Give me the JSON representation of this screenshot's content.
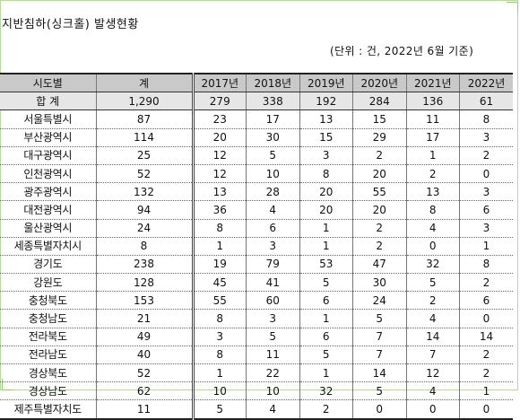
{
  "title": "지반침하(싱크홀) 발생현황",
  "unit_note": "(단위 : 건, 2022년 6월 기준)",
  "table": {
    "headers": [
      "시도별",
      "계",
      "2017년",
      "2018년",
      "2019년",
      "2020년",
      "2021년",
      "2022년"
    ],
    "total": {
      "label": "합 계",
      "values": [
        "1,290",
        "279",
        "338",
        "192",
        "284",
        "136",
        "61"
      ]
    },
    "rows": [
      {
        "region": "서울특별시",
        "values": [
          "87",
          "23",
          "17",
          "13",
          "15",
          "11",
          "8"
        ]
      },
      {
        "region": "부산광역시",
        "values": [
          "114",
          "20",
          "30",
          "15",
          "29",
          "17",
          "3"
        ]
      },
      {
        "region": "대구광역시",
        "values": [
          "25",
          "12",
          "5",
          "3",
          "2",
          "1",
          "2"
        ]
      },
      {
        "region": "인천광역시",
        "values": [
          "52",
          "12",
          "10",
          "8",
          "20",
          "2",
          "0"
        ]
      },
      {
        "region": "광주광역시",
        "values": [
          "132",
          "13",
          "28",
          "20",
          "55",
          "13",
          "3"
        ]
      },
      {
        "region": "대전광역시",
        "values": [
          "94",
          "36",
          "4",
          "20",
          "20",
          "8",
          "6"
        ]
      },
      {
        "region": "울산광역시",
        "values": [
          "24",
          "8",
          "6",
          "1",
          "2",
          "4",
          "3"
        ]
      },
      {
        "region": "세종특별자치시",
        "values": [
          "8",
          "1",
          "3",
          "1",
          "2",
          "0",
          "1"
        ]
      },
      {
        "region": "경기도",
        "values": [
          "238",
          "19",
          "79",
          "53",
          "47",
          "32",
          "8"
        ]
      },
      {
        "region": "강원도",
        "values": [
          "128",
          "45",
          "41",
          "5",
          "30",
          "5",
          "2"
        ]
      },
      {
        "region": "충청북도",
        "values": [
          "153",
          "55",
          "60",
          "6",
          "24",
          "2",
          "6"
        ]
      },
      {
        "region": "충청남도",
        "values": [
          "21",
          "8",
          "3",
          "1",
          "5",
          "4",
          "0"
        ]
      },
      {
        "region": "전라북도",
        "values": [
          "49",
          "3",
          "5",
          "6",
          "7",
          "14",
          "14"
        ]
      },
      {
        "region": "전라남도",
        "values": [
          "40",
          "8",
          "11",
          "5",
          "7",
          "7",
          "2"
        ]
      },
      {
        "region": "경상북도",
        "values": [
          "52",
          "1",
          "22",
          "1",
          "14",
          "12",
          "2"
        ]
      },
      {
        "region": "경상남도",
        "values": [
          "62",
          "10",
          "10",
          "32",
          "5",
          "4",
          "1"
        ]
      },
      {
        "region": "제주특별자치도",
        "values": [
          "11",
          "5",
          "4",
          "2",
          "0",
          "0",
          "0"
        ]
      }
    ]
  }
}
